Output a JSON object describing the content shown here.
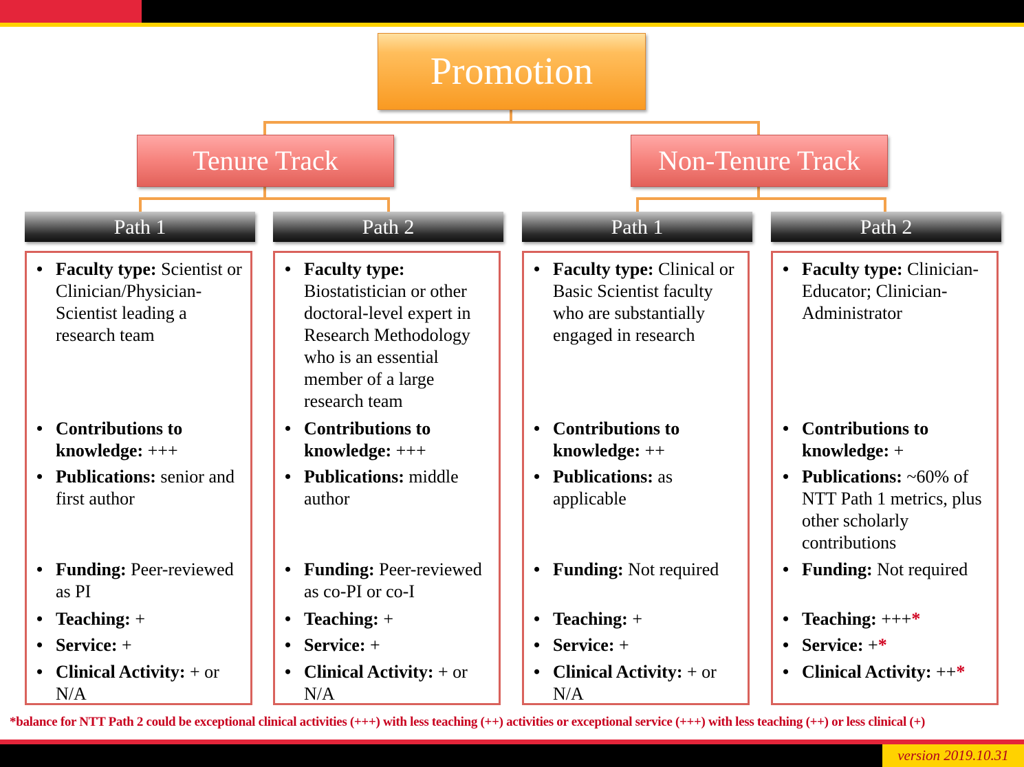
{
  "colors": {
    "accent_red": "#e4253a",
    "gold": "#ffd200",
    "connector": "#f4a24b",
    "box_border": "#d9625c",
    "note_red": "#d0001e"
  },
  "root": {
    "title": "Promotion"
  },
  "tracks": [
    {
      "title": "Tenure Track"
    },
    {
      "title": "Non-Tenure Track"
    }
  ],
  "columns": [
    {
      "path": "Path 1",
      "items": [
        {
          "label": "Faculty type:",
          "value": " Scientist or Clinician/Physician-Scientist leading a research team",
          "note": ""
        },
        {
          "label": "Contributions to knowledge:",
          "value": " +++",
          "note": ""
        },
        {
          "label": "Publications:",
          "value": " senior and first author",
          "note": ""
        },
        {
          "label": "Funding:",
          "value": " Peer-reviewed as PI",
          "note": ""
        },
        {
          "label": "Teaching:",
          "value": " +",
          "note": ""
        },
        {
          "label": "Service:",
          "value": " +",
          "note": ""
        },
        {
          "label": "Clinical Activity:",
          "value": " + or N/A",
          "note": ""
        }
      ]
    },
    {
      "path": "Path 2",
      "items": [
        {
          "label": "Faculty type:",
          "value": " Biostatistician or other doctoral-level expert in Research Methodology who is an essential member of a large research team",
          "note": ""
        },
        {
          "label": "Contributions to knowledge:",
          "value": " +++",
          "note": ""
        },
        {
          "label": "Publications:",
          "value": " middle author",
          "note": ""
        },
        {
          "label": "Funding:",
          "value": " Peer-reviewed as co-PI or co-I",
          "note": ""
        },
        {
          "label": "Teaching:",
          "value": " +",
          "note": ""
        },
        {
          "label": "Service:",
          "value": " +",
          "note": ""
        },
        {
          "label": "Clinical Activity:",
          "value": " + or N/A",
          "note": ""
        }
      ]
    },
    {
      "path": "Path 1",
      "items": [
        {
          "label": "Faculty type:",
          "value": " Clinical or Basic Scientist faculty who are substantially engaged in research",
          "note": ""
        },
        {
          "label": "Contributions to knowledge:",
          "value": " ++",
          "note": ""
        },
        {
          "label": "Publications:",
          "value": " as applicable",
          "note": ""
        },
        {
          "label": "Funding:",
          "value": " Not required",
          "note": ""
        },
        {
          "label": "Teaching:",
          "value": " +",
          "note": ""
        },
        {
          "label": "Service:",
          "value": " +",
          "note": ""
        },
        {
          "label": "Clinical Activity:",
          "value": " + or N/A",
          "note": ""
        }
      ]
    },
    {
      "path": "Path 2",
      "items": [
        {
          "label": "Faculty type:",
          "value": " Clinician-Educator; Clinician-Administrator",
          "note": ""
        },
        {
          "label": "Contributions to knowledge:",
          "value": " +",
          "note": ""
        },
        {
          "label": "Publications:",
          "value": " ~60% of NTT Path 1 metrics, plus other scholarly contributions",
          "note": ""
        },
        {
          "label": "Funding:",
          "value": " Not required",
          "note": ""
        },
        {
          "label": "Teaching:",
          "value": " +++",
          "note": "*"
        },
        {
          "label": "Service:",
          "value": " +",
          "note": "*"
        },
        {
          "label": "Clinical Activity:",
          "value": " ++",
          "note": "*"
        }
      ]
    }
  ],
  "footnote": "*balance for NTT Path 2 could be exceptional clinical activities (+++) with less teaching (++) activities or exceptional service (+++) with less teaching (++) or less clinical (+)",
  "version": "version 2019.10.31"
}
